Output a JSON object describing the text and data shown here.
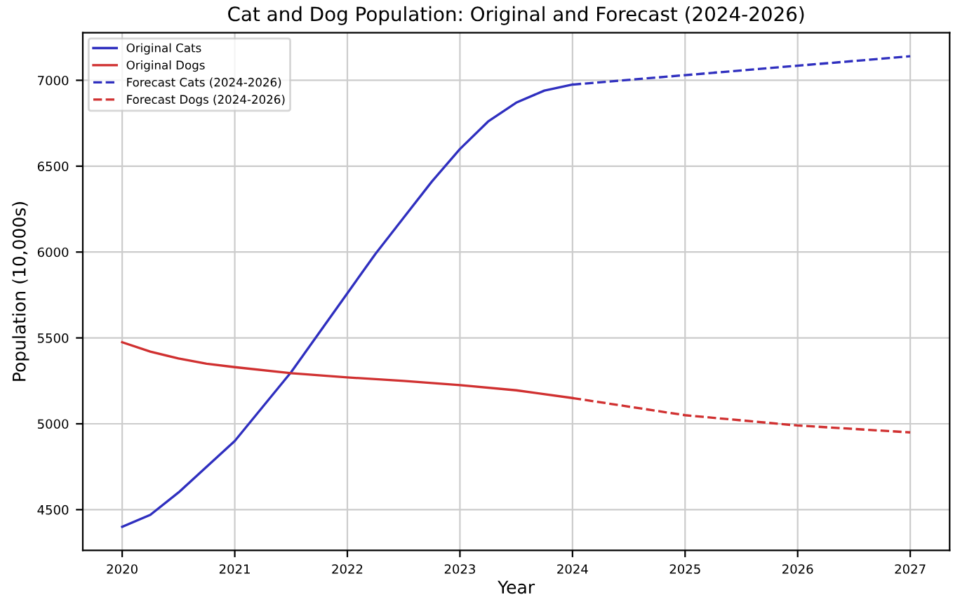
{
  "chart_data": {
    "type": "line",
    "title": "Cat and Dog Population: Original and Forecast (2024-2026)",
    "xlabel": "Year",
    "ylabel": "Population (10,000s)",
    "series": [
      {
        "name": "Original Cats",
        "color": "#2f2fbf",
        "line_style": "solid",
        "x": [
          2020,
          2020.25,
          2020.5,
          2020.75,
          2021,
          2021.25,
          2021.5,
          2021.75,
          2022,
          2022.25,
          2022.5,
          2022.75,
          2023,
          2023.25,
          2023.5,
          2023.75,
          2024
        ],
        "values": [
          4400,
          4470,
          4600,
          4750,
          4900,
          5100,
          5300,
          5530,
          5760,
          5990,
          6200,
          6410,
          6600,
          6760,
          6870,
          6940,
          6975
        ]
      },
      {
        "name": "Original Dogs",
        "color": "#d03030",
        "line_style": "solid",
        "x": [
          2020,
          2020.25,
          2020.5,
          2020.75,
          2021,
          2021.5,
          2022,
          2022.5,
          2023,
          2023.5,
          2024
        ],
        "values": [
          5475,
          5420,
          5380,
          5350,
          5330,
          5295,
          5270,
          5250,
          5225,
          5195,
          5150
        ]
      },
      {
        "name": "Forecast Cats (2024-2026)",
        "color": "#2f2fbf",
        "line_style": "dashed",
        "x": [
          2024,
          2025,
          2026,
          2027
        ],
        "values": [
          6975,
          7030,
          7085,
          7140
        ]
      },
      {
        "name": "Forecast Dogs (2024-2026)",
        "color": "#d03030",
        "line_style": "dashed",
        "x": [
          2024,
          2025,
          2026,
          2027
        ],
        "values": [
          5150,
          5050,
          4990,
          4950
        ]
      }
    ],
    "xlim": [
      2019.65,
      2027.35
    ],
    "xticks": [
      2020,
      2021,
      2022,
      2023,
      2024,
      2025,
      2026,
      2027
    ],
    "ylim": [
      4263,
      7277
    ],
    "yticks": [
      4500,
      5000,
      5500,
      6000,
      6500,
      7000
    ],
    "grid": true,
    "legend": "top left",
    "marker": "none"
  }
}
